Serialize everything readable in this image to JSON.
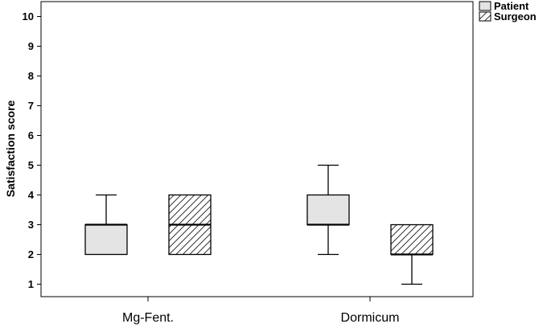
{
  "chart_data": {
    "type": "boxplot",
    "title": "",
    "xlabel": "",
    "ylabel": "Satisfaction score",
    "ylim": [
      0.6,
      10.5
    ],
    "yticks": [
      1,
      2,
      3,
      4,
      5,
      6,
      7,
      8,
      9,
      10
    ],
    "categories": [
      "Mg-Fent.",
      "Dormicum"
    ],
    "legend_position": "top-right",
    "series": [
      {
        "name": "Patient",
        "fill": "#e4e4e4",
        "pattern": "solid",
        "boxes": [
          {
            "whisker_low": 2,
            "q1": 2,
            "median": 3,
            "q3": 3,
            "whisker_high": 4
          },
          {
            "whisker_low": 2,
            "q1": 3,
            "median": 3,
            "q3": 4,
            "whisker_high": 5
          }
        ]
      },
      {
        "name": "Surgeon",
        "fill": "#ffffff",
        "pattern": "diagonal-hatch",
        "boxes": [
          {
            "whisker_low": 2,
            "q1": 2,
            "median": 3,
            "q3": 4,
            "whisker_high": 4
          },
          {
            "whisker_low": 1,
            "q1": 2,
            "median": 2,
            "q3": 3,
            "whisker_high": 3
          }
        ]
      }
    ]
  }
}
